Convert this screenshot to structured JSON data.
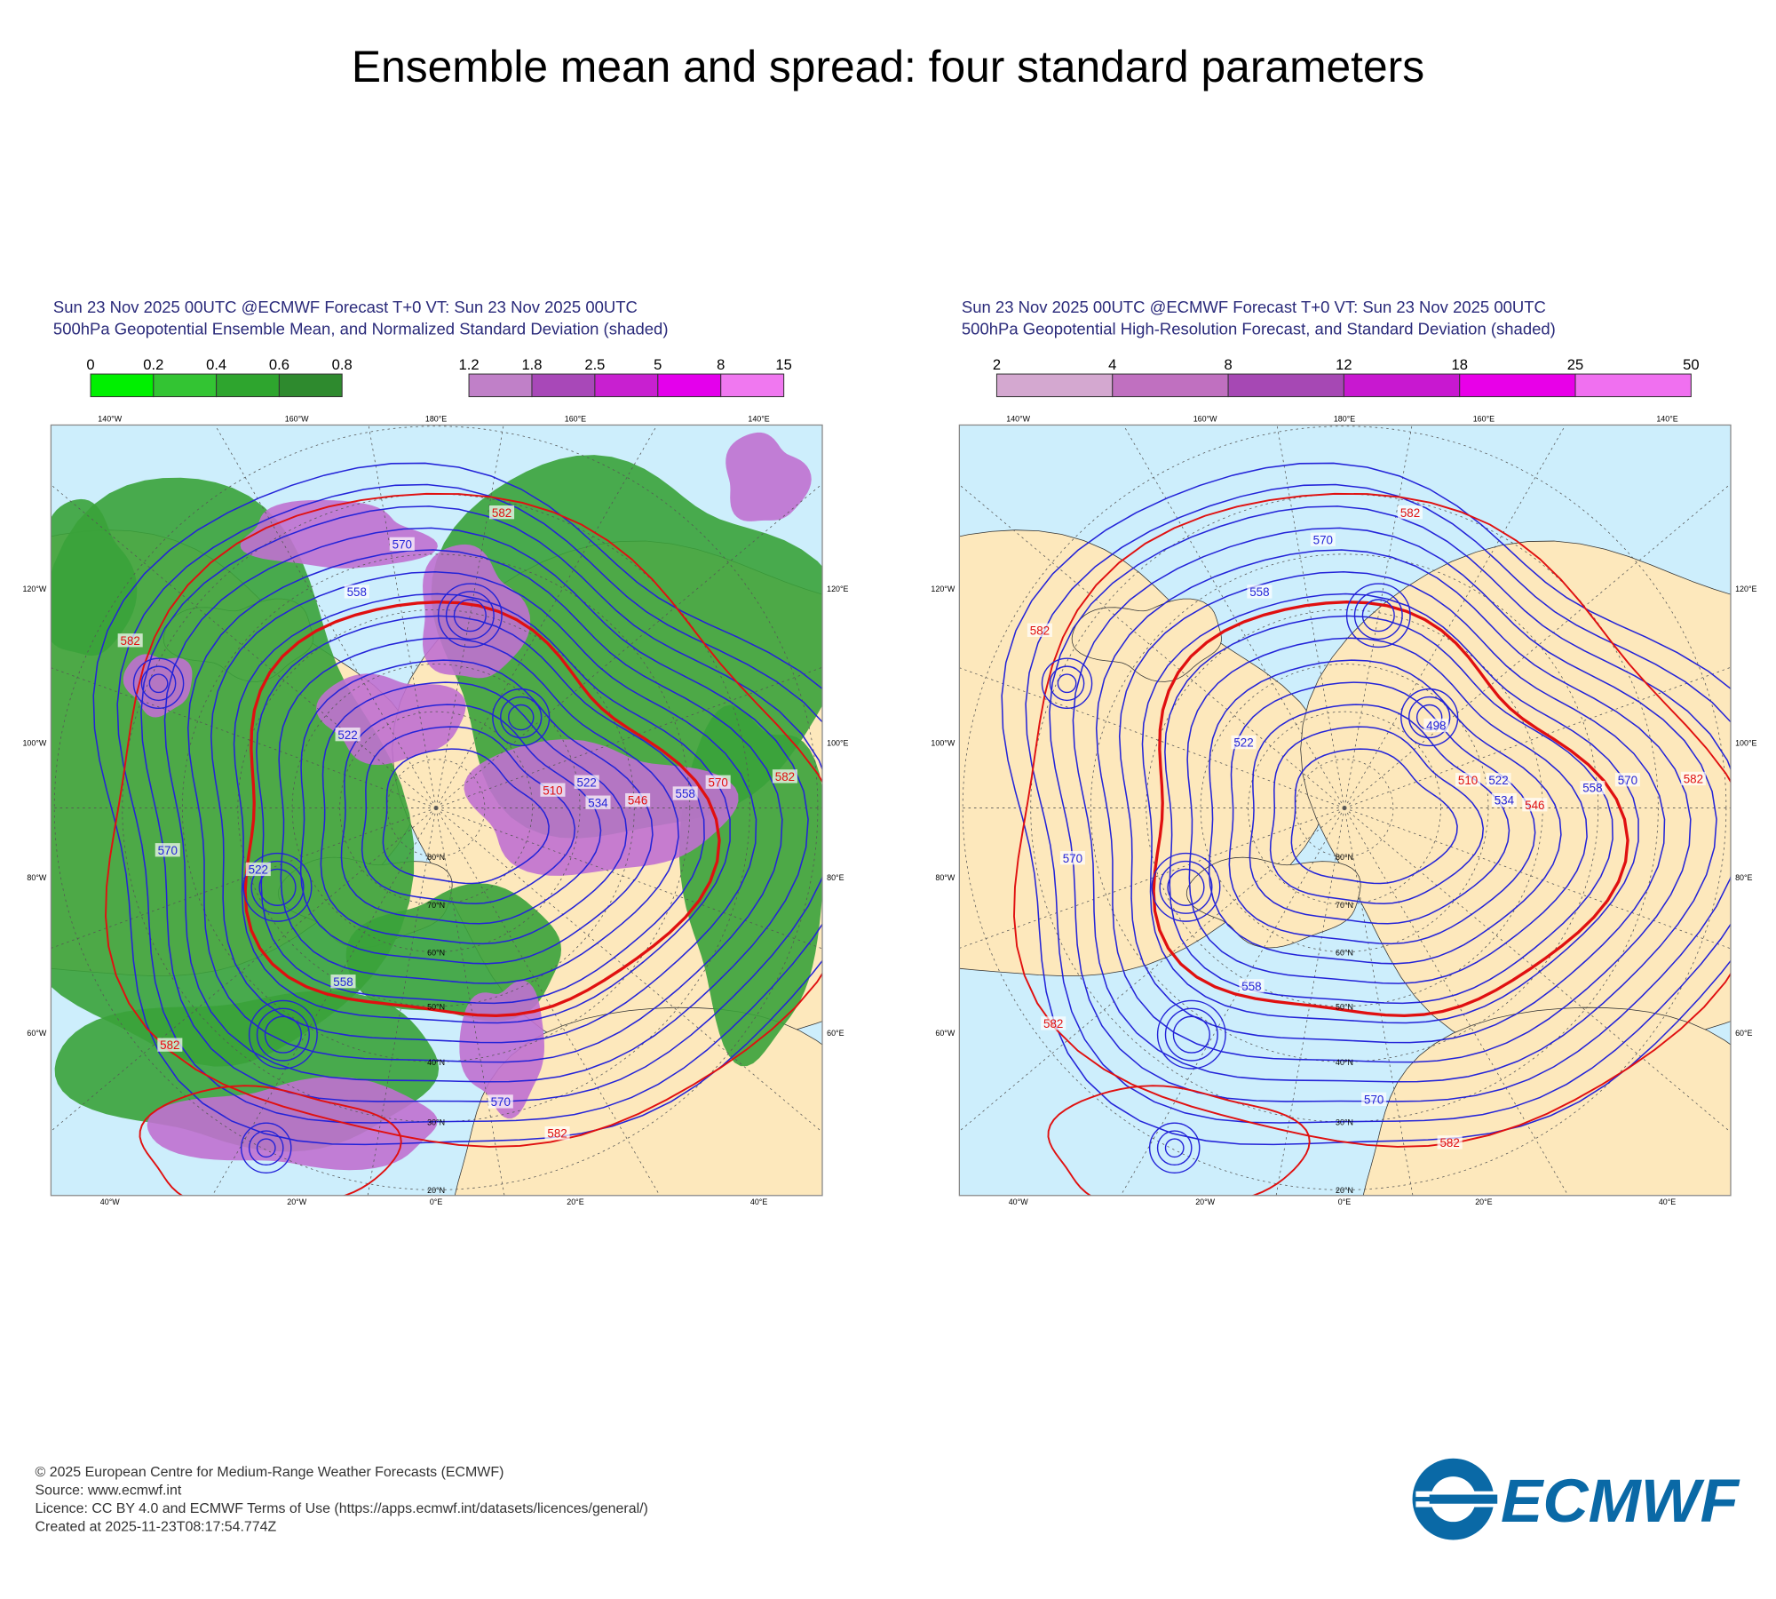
{
  "title": "Ensemble mean and spread: four standard parameters",
  "panels": [
    {
      "header": [
        "Sun 23 Nov 2025 00UTC @ECMWF Forecast T+0 VT: Sun 23 Nov 2025 00UTC",
        "500hPa Geopotential Ensemble Mean, and Normalized Standard Deviation (shaded)"
      ],
      "colorbars": [
        {
          "ticks": [
            0,
            0.2,
            0.4,
            0.6,
            0.8
          ],
          "colors": [
            "#00f000",
            "#33c433",
            "#2ea52e",
            "#2e8a2e"
          ]
        },
        {
          "ticks": [
            1.2,
            1.8,
            2.5,
            5,
            8,
            15
          ],
          "colors": [
            "#c080c8",
            "#a848b8",
            "#c820d0",
            "#e400ec",
            "#f078f0"
          ]
        }
      ],
      "lon_labels_top": [
        "140°W",
        "160°W",
        "180°E",
        "160°E",
        "140°E"
      ],
      "lon_labels_bottom": [
        "40°W",
        "20°W",
        "0°E",
        "20°E",
        "40°E"
      ],
      "lat_labels_left": [
        "120°W",
        "100°W",
        "80°W",
        "60°W"
      ],
      "lat_labels_right": [
        "120°E",
        "100°E",
        "80°E",
        "60°E"
      ],
      "lat_rings": [
        "20°N",
        "30°N",
        "40°N",
        "50°N",
        "60°N",
        "70°N",
        "80°N"
      ],
      "contour_labels": [
        582,
        570,
        558,
        582,
        570,
        522,
        558,
        582,
        570,
        582,
        510,
        522,
        534,
        546,
        558,
        570,
        582,
        522
      ]
    },
    {
      "header": [
        "Sun 23 Nov 2025 00UTC @ECMWF Forecast T+0 VT: Sun 23 Nov 2025 00UTC",
        "500hPa Geopotential High-Resolution Forecast, and Standard Deviation (shaded)"
      ],
      "colorbars": [
        {
          "ticks": [
            2,
            4,
            8,
            12,
            18,
            25,
            50
          ],
          "colors": [
            "#d4a8d0",
            "#c070c0",
            "#a648b4",
            "#c818d0",
            "#e800e8",
            "#f070f0"
          ]
        }
      ],
      "lon_labels_top": [
        "140°W",
        "160°W",
        "180°E",
        "160°E",
        "140°E"
      ],
      "lon_labels_bottom": [
        "40°W",
        "20°W",
        "0°E",
        "20°E",
        "40°E"
      ],
      "lat_labels_left": [
        "120°W",
        "100°W",
        "80°W",
        "60°W"
      ],
      "lat_labels_right": [
        "120°E",
        "100°E",
        "80°E",
        "60°E"
      ],
      "lat_rings": [
        "20°N",
        "30°N",
        "40°N",
        "50°N",
        "60°N",
        "70°N",
        "80°N"
      ],
      "contour_labels": [
        582,
        570,
        558,
        582,
        570,
        522,
        498,
        510,
        522,
        534,
        546,
        558,
        570,
        582,
        558,
        582,
        570,
        582
      ]
    }
  ],
  "footer": [
    "© 2025 European Centre for Medium-Range Weather Forecasts (ECMWF)",
    "Source: www.ecmwf.int",
    "Licence: CC BY 4.0 and ECMWF Terms of Use (https://apps.ecmwf.int/datasets/licences/general/)",
    "Created at 2025-11-23T08:17:54.774Z"
  ],
  "logo": "ECMWF"
}
